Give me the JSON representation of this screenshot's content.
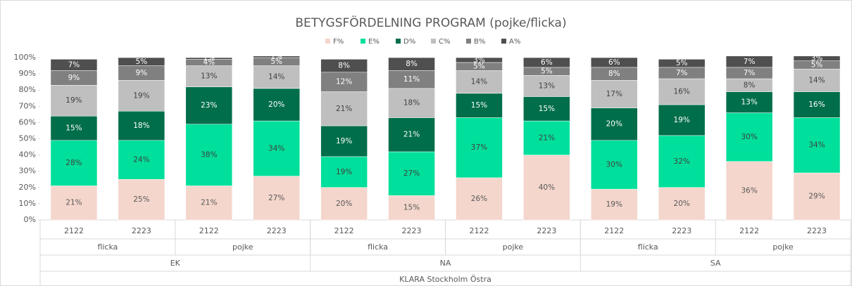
{
  "chart_data": {
    "type": "stacked_bar_100",
    "title": "BETYGSFÖRDELNING PROGRAM (pojke/flicka)",
    "categories": [
      "2122",
      "2223",
      "2122",
      "2223",
      "2122",
      "2223",
      "2122",
      "2223",
      "2122",
      "2223",
      "2122",
      "2223"
    ],
    "group_levels": [
      {
        "labels": [
          "flicka",
          "pojke",
          "flicka",
          "pojke",
          "flicka",
          "pojke"
        ]
      },
      {
        "labels": [
          "EK",
          "NA",
          "SA"
        ]
      },
      {
        "labels": [
          "KLARA Stockholm Östra"
        ]
      }
    ],
    "ylim": [
      0,
      100
    ],
    "yticks": [
      {
        "value": 0,
        "label": "0%"
      },
      {
        "value": 10,
        "label": "10%"
      },
      {
        "value": 20,
        "label": "20%"
      },
      {
        "value": 30,
        "label": "30%"
      },
      {
        "value": 40,
        "label": "40%"
      },
      {
        "value": 50,
        "label": "50%"
      },
      {
        "value": 60,
        "label": "60%"
      },
      {
        "value": 70,
        "label": "70%"
      },
      {
        "value": 80,
        "label": "80%"
      },
      {
        "value": 90,
        "label": "90%"
      },
      {
        "value": 100,
        "label": "100%"
      }
    ],
    "legend": "top",
    "series": [
      {
        "name": "F%",
        "color": "#f4d6cc",
        "label_color": "#595959",
        "values": [
          21,
          25,
          21,
          27,
          20,
          15,
          26,
          40,
          19,
          20,
          36,
          29
        ],
        "value_labels": [
          "21%",
          "25%",
          "21%",
          "27%",
          "20%",
          "15%",
          "26%",
          "40%",
          "19%",
          "20%",
          "36%",
          "29%"
        ]
      },
      {
        "name": "E%",
        "color": "#00df9b",
        "label_color": "#404040",
        "values": [
          28,
          24,
          38,
          34,
          19,
          27,
          37,
          21,
          30,
          32,
          30,
          34
        ],
        "value_labels": [
          "28%",
          "24%",
          "38%",
          "34%",
          "19%",
          "27%",
          "37%",
          "21%",
          "30%",
          "32%",
          "30%",
          "34%"
        ]
      },
      {
        "name": "D%",
        "color": "#006e4a",
        "label_color": "#ffffff",
        "values": [
          15,
          18,
          23,
          20,
          19,
          21,
          15,
          15,
          20,
          19,
          13,
          16
        ],
        "value_labels": [
          "15%",
          "18%",
          "23%",
          "20%",
          "19%",
          "21%",
          "15%",
          "15%",
          "20%",
          "19%",
          "13%",
          "16%"
        ]
      },
      {
        "name": "C%",
        "color": "#bfbfbf",
        "label_color": "#404040",
        "values": [
          19,
          19,
          13,
          14,
          21,
          18,
          14,
          13,
          17,
          16,
          8,
          14
        ],
        "value_labels": [
          "19%",
          "19%",
          "13%",
          "14%",
          "21%",
          "18%",
          "14%",
          "13%",
          "17%",
          "16%",
          "8%",
          "14%"
        ]
      },
      {
        "name": "B%",
        "color": "#808080",
        "label_color": "#ffffff",
        "values": [
          9,
          9,
          4,
          5,
          12,
          11,
          5,
          5,
          8,
          7,
          7,
          5
        ],
        "value_labels": [
          "9%",
          "9%",
          "4%",
          "5%",
          "12%",
          "11%",
          "5%",
          "5%",
          "8%",
          "7%",
          "7%",
          "5%"
        ]
      },
      {
        "name": "A%",
        "color": "#4f4f4f",
        "label_color": "#ffffff",
        "values": [
          7,
          5,
          1,
          1,
          8,
          8,
          3,
          6,
          6,
          5,
          7,
          3
        ],
        "value_labels": [
          "7%",
          "5%",
          "1%",
          "1%",
          "8%",
          "8%",
          "3%",
          "6%",
          "6%",
          "5%",
          "7%",
          "3%"
        ]
      }
    ]
  }
}
